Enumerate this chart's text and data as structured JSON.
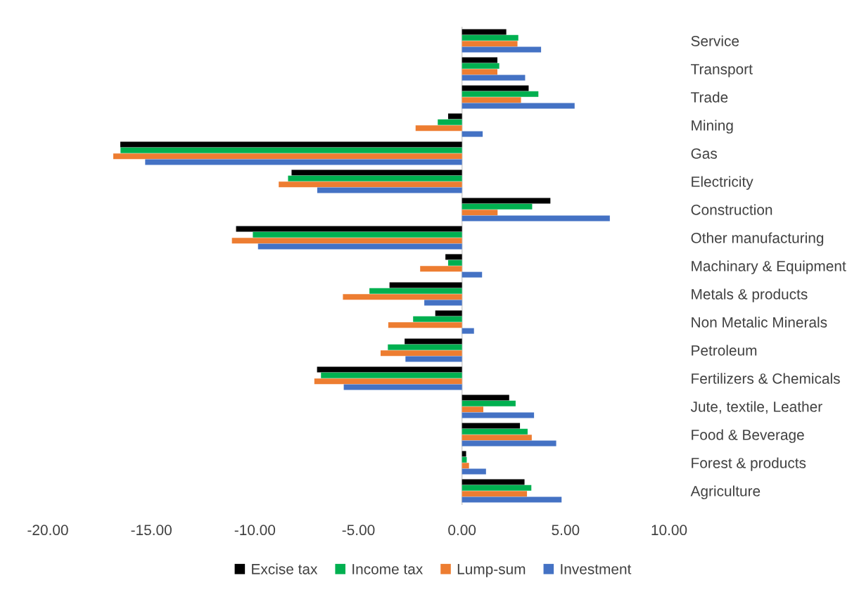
{
  "chart_data": {
    "type": "bar",
    "orientation": "horizontal",
    "categories": [
      "Service",
      "Transport",
      "Trade",
      "Mining",
      "Gas",
      "Electricity",
      "Construction",
      "Other manufacturing",
      "Machinary & Equipment",
      "Metals & products",
      "Non Metalic Minerals",
      "Petroleum",
      "Fertilizers & Chemicals",
      "Jute, textile, Leather",
      "Food & Beverage",
      "Forest & products",
      "Agriculture"
    ],
    "series": [
      {
        "name": "Excise tax",
        "color": "#000000",
        "values": [
          2.14,
          1.71,
          3.22,
          -0.67,
          -16.5,
          -8.23,
          4.27,
          -10.91,
          -0.8,
          -3.5,
          -1.29,
          -2.77,
          -7.0,
          2.28,
          2.8,
          0.2,
          3.02
        ]
      },
      {
        "name": "Income tax",
        "color": "#00b050",
        "values": [
          2.72,
          1.8,
          3.69,
          -1.17,
          -16.49,
          -8.4,
          3.39,
          -10.1,
          -0.67,
          -4.47,
          -2.36,
          -3.58,
          -6.81,
          2.59,
          3.17,
          0.23,
          3.35
        ]
      },
      {
        "name": "Lump-sum",
        "color": "#ed7d31",
        "values": [
          2.68,
          1.71,
          2.85,
          -2.24,
          -16.84,
          -8.85,
          1.72,
          -11.11,
          -2.02,
          -5.75,
          -3.56,
          -3.93,
          -7.13,
          1.03,
          3.37,
          0.34,
          3.14
        ]
      },
      {
        "name": "Investment",
        "color": "#4472c4",
        "values": [
          3.82,
          3.05,
          5.44,
          1.0,
          -15.3,
          -6.99,
          7.14,
          -9.85,
          0.97,
          -1.82,
          0.58,
          -2.73,
          -5.71,
          3.48,
          4.55,
          1.16,
          4.81
        ]
      }
    ],
    "xlim": [
      -20,
      10
    ],
    "xticks": [
      {
        "value": -20,
        "label": "-20.00"
      },
      {
        "value": -15,
        "label": "-15.00"
      },
      {
        "value": -10,
        "label": "-10.00"
      },
      {
        "value": -5,
        "label": "-5.00"
      },
      {
        "value": 0,
        "label": "0.00"
      },
      {
        "value": 5,
        "label": "5.00"
      },
      {
        "value": 10,
        "label": "10.00"
      }
    ],
    "ref_lines": [
      {
        "axis": "x",
        "value": 0,
        "color": "#d9d9d9"
      }
    ],
    "legend": "bottom"
  }
}
